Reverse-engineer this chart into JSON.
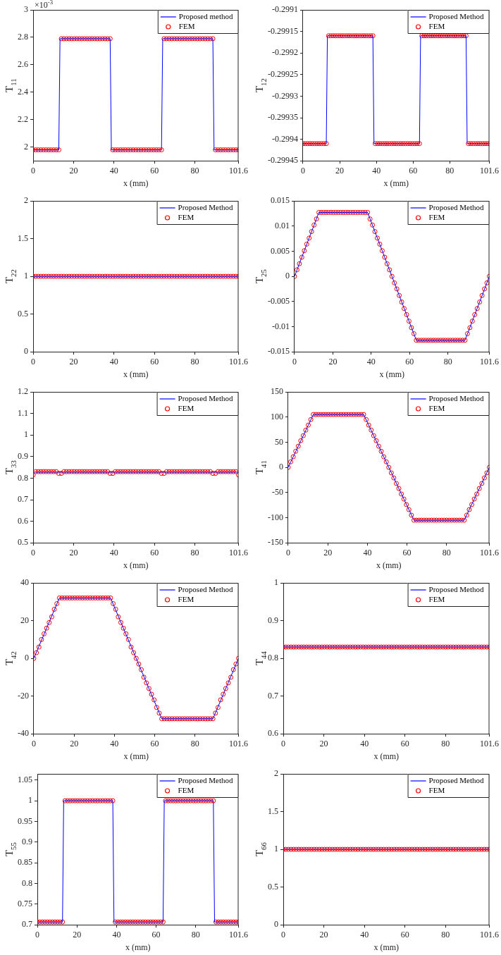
{
  "chart_data": [
    {
      "type": "line",
      "xlabel": "x (mm)",
      "ylabel": "T$_{11}$",
      "annotations": [
        "×10$^{-3}$"
      ],
      "legend": "top right",
      "xlim": [
        0,
        101.6
      ],
      "xticks": [
        0,
        20,
        40,
        60,
        80,
        101.6
      ],
      "ylim": [
        1.9,
        3
      ],
      "yticks": [
        2,
        2.2,
        2.4,
        2.6,
        2.8,
        3
      ],
      "x": [
        0,
        1.27,
        2.54,
        3.81,
        5.08,
        6.35,
        7.62,
        8.89,
        10.16,
        11.43,
        12.7,
        13.97,
        15.24,
        16.51,
        17.78,
        19.05,
        20.32,
        21.59,
        22.86,
        24.13,
        25.4,
        26.67,
        27.94,
        29.21,
        30.48,
        31.75,
        33.02,
        34.29,
        35.56,
        36.83,
        38.1,
        39.37,
        40.64,
        41.91,
        43.18,
        44.45,
        45.72,
        46.99,
        48.26,
        49.53,
        50.8,
        52.07,
        53.34,
        54.61,
        55.88,
        57.15,
        58.42,
        59.69,
        60.96,
        62.23,
        63.5,
        64.77,
        66.04,
        67.31,
        68.58,
        69.85,
        71.12,
        72.39,
        73.66,
        74.93,
        76.2,
        77.47,
        78.74,
        80.01,
        81.28,
        82.55,
        83.82,
        85.09,
        86.36,
        87.63,
        88.9,
        90.17,
        91.44,
        92.71,
        93.98,
        95.25,
        96.52,
        97.79,
        99.06,
        100.33,
        101.6
      ],
      "series": [
        {
          "name": "Proposed method",
          "type": "line",
          "marker": "none",
          "color": "#0000ff",
          "x": [
            0,
            12.7,
            13.3,
            38.1,
            38.7,
            63.5,
            64.1,
            88.9,
            89.5,
            101.6
          ],
          "values": [
            1.98,
            1.98,
            2.79,
            2.79,
            1.98,
            1.98,
            2.79,
            2.79,
            1.98,
            1.98
          ]
        },
        {
          "name": "FEM",
          "type": "scatter",
          "marker": "circle",
          "color": "#ff0000",
          "values": [
            1.98,
            1.98,
            1.98,
            1.98,
            1.98,
            1.98,
            1.98,
            1.98,
            1.98,
            1.98,
            1.98,
            2.79,
            2.79,
            2.79,
            2.79,
            2.79,
            2.79,
            2.79,
            2.79,
            2.79,
            2.79,
            2.79,
            2.79,
            2.79,
            2.79,
            2.79,
            2.79,
            2.79,
            2.79,
            2.79,
            2.79,
            1.98,
            1.98,
            1.98,
            1.98,
            1.98,
            1.98,
            1.98,
            1.98,
            1.98,
            1.98,
            1.98,
            1.98,
            1.98,
            1.98,
            1.98,
            1.98,
            1.98,
            1.98,
            1.98,
            1.98,
            2.79,
            2.79,
            2.79,
            2.79,
            2.79,
            2.79,
            2.79,
            2.79,
            2.79,
            2.79,
            2.79,
            2.79,
            2.79,
            2.79,
            2.79,
            2.79,
            2.79,
            2.79,
            2.79,
            2.79,
            1.98,
            1.98,
            1.98,
            1.98,
            1.98,
            1.98,
            1.98,
            1.98,
            1.98,
            1.98
          ]
        }
      ]
    },
    {
      "type": "line",
      "xlabel": "x (mm)",
      "ylabel": "T$_{12}$",
      "legend": "top right",
      "xlim": [
        0,
        101.6
      ],
      "xticks": [
        0,
        20,
        40,
        60,
        80,
        101.6
      ],
      "ylim": [
        -0.29945,
        -0.2991
      ],
      "yticks": [
        -0.29945,
        -0.2994,
        -0.29935,
        -0.2993,
        -0.29925,
        -0.2992,
        -0.29915,
        -0.2991
      ],
      "x": [
        0,
        1.27,
        2.54,
        3.81,
        5.08,
        6.35,
        7.62,
        8.89,
        10.16,
        11.43,
        12.7,
        13.97,
        15.24,
        16.51,
        17.78,
        19.05,
        20.32,
        21.59,
        22.86,
        24.13,
        25.4,
        26.67,
        27.94,
        29.21,
        30.48,
        31.75,
        33.02,
        34.29,
        35.56,
        36.83,
        38.1,
        39.37,
        40.64,
        41.91,
        43.18,
        44.45,
        45.72,
        46.99,
        48.26,
        49.53,
        50.8,
        52.07,
        53.34,
        54.61,
        55.88,
        57.15,
        58.42,
        59.69,
        60.96,
        62.23,
        63.5,
        64.77,
        66.04,
        67.31,
        68.58,
        69.85,
        71.12,
        72.39,
        73.66,
        74.93,
        76.2,
        77.47,
        78.74,
        80.01,
        81.28,
        82.55,
        83.82,
        85.09,
        86.36,
        87.63,
        88.9,
        90.17,
        91.44,
        92.71,
        93.98,
        95.25,
        96.52,
        97.79,
        99.06,
        100.33,
        101.6
      ],
      "series": [
        {
          "name": "Proposed Method",
          "type": "line",
          "marker": "none",
          "color": "#0000ff",
          "x": [
            0,
            12.7,
            13.3,
            38.1,
            38.7,
            63.5,
            64.1,
            88.9,
            89.5,
            101.6
          ],
          "values": [
            -0.29941,
            -0.29941,
            -0.29916,
            -0.29916,
            -0.29941,
            -0.29941,
            -0.29916,
            -0.29916,
            -0.29941,
            -0.29941
          ]
        },
        {
          "name": "FEM",
          "type": "scatter",
          "marker": "circle",
          "color": "#ff0000",
          "values": [
            -0.29941,
            -0.29941,
            -0.29941,
            -0.29941,
            -0.29941,
            -0.29941,
            -0.29941,
            -0.29941,
            -0.29941,
            -0.29941,
            -0.29941,
            -0.29916,
            -0.29916,
            -0.29916,
            -0.29916,
            -0.29916,
            -0.29916,
            -0.29916,
            -0.29916,
            -0.29916,
            -0.29916,
            -0.29916,
            -0.29916,
            -0.29916,
            -0.29916,
            -0.29916,
            -0.29916,
            -0.29916,
            -0.29916,
            -0.29916,
            -0.29916,
            -0.29941,
            -0.29941,
            -0.29941,
            -0.29941,
            -0.29941,
            -0.29941,
            -0.29941,
            -0.29941,
            -0.29941,
            -0.29941,
            -0.29941,
            -0.29941,
            -0.29941,
            -0.29941,
            -0.29941,
            -0.29941,
            -0.29941,
            -0.29941,
            -0.29941,
            -0.29941,
            -0.29916,
            -0.29916,
            -0.29916,
            -0.29916,
            -0.29916,
            -0.29916,
            -0.29916,
            -0.29916,
            -0.29916,
            -0.29916,
            -0.29916,
            -0.29916,
            -0.29916,
            -0.29916,
            -0.29916,
            -0.29916,
            -0.29916,
            -0.29916,
            -0.29916,
            -0.29916,
            -0.29941,
            -0.29941,
            -0.29941,
            -0.29941,
            -0.29941,
            -0.29941,
            -0.29941,
            -0.29941,
            -0.29941,
            -0.29941
          ]
        }
      ]
    },
    {
      "type": "line",
      "xlabel": "x (mm)",
      "ylabel": "T$_{22}$",
      "legend": "top right",
      "xlim": [
        0,
        101.6
      ],
      "xticks": [
        0,
        20,
        40,
        60,
        80,
        101.6
      ],
      "ylim": [
        0,
        2
      ],
      "yticks": [
        0,
        0.5,
        1,
        1.5,
        2
      ],
      "x": [
        0,
        1.27,
        2.54,
        3.81,
        5.08,
        6.35,
        7.62,
        8.89,
        10.16,
        11.43,
        12.7,
        13.97,
        15.24,
        16.51,
        17.78,
        19.05,
        20.32,
        21.59,
        22.86,
        24.13,
        25.4,
        26.67,
        27.94,
        29.21,
        30.48,
        31.75,
        33.02,
        34.29,
        35.56,
        36.83,
        38.1,
        39.37,
        40.64,
        41.91,
        43.18,
        44.45,
        45.72,
        46.99,
        48.26,
        49.53,
        50.8,
        52.07,
        53.34,
        54.61,
        55.88,
        57.15,
        58.42,
        59.69,
        60.96,
        62.23,
        63.5,
        64.77,
        66.04,
        67.31,
        68.58,
        69.85,
        71.12,
        72.39,
        73.66,
        74.93,
        76.2,
        77.47,
        78.74,
        80.01,
        81.28,
        82.55,
        83.82,
        85.09,
        86.36,
        87.63,
        88.9,
        90.17,
        91.44,
        92.71,
        93.98,
        95.25,
        96.52,
        97.79,
        99.06,
        100.33,
        101.6
      ],
      "series": [
        {
          "name": "Proposed Method",
          "type": "line",
          "marker": "none",
          "color": "#0000ff",
          "x": [
            0,
            101.6
          ],
          "values": [
            1,
            1
          ]
        },
        {
          "name": "FEM",
          "type": "scatter",
          "marker": "circle",
          "color": "#ff0000",
          "values": [
            1,
            1,
            1,
            1,
            1,
            1,
            1,
            1,
            1,
            1,
            1,
            1,
            1,
            1,
            1,
            1,
            1,
            1,
            1,
            1,
            1,
            1,
            1,
            1,
            1,
            1,
            1,
            1,
            1,
            1,
            1,
            1,
            1,
            1,
            1,
            1,
            1,
            1,
            1,
            1,
            1,
            1,
            1,
            1,
            1,
            1,
            1,
            1,
            1,
            1,
            1,
            1,
            1,
            1,
            1,
            1,
            1,
            1,
            1,
            1,
            1,
            1,
            1,
            1,
            1,
            1,
            1,
            1,
            1,
            1,
            1,
            1,
            1,
            1,
            1,
            1,
            1,
            1,
            1,
            1,
            1
          ]
        }
      ]
    },
    {
      "type": "line",
      "xlabel": "x (mm)",
      "ylabel": "T$_{25}$",
      "legend": "top right",
      "xlim": [
        0,
        101.6
      ],
      "xticks": [
        0,
        20,
        40,
        60,
        80,
        101.6
      ],
      "ylim": [
        -0.015,
        0.015
      ],
      "yticks": [
        -0.015,
        -0.01,
        -0.005,
        0,
        0.005,
        0.01,
        0.015
      ],
      "x": [
        0,
        1.27,
        2.54,
        3.81,
        5.08,
        6.35,
        7.62,
        8.89,
        10.16,
        11.43,
        12.7,
        13.97,
        15.24,
        16.51,
        17.78,
        19.05,
        20.32,
        21.59,
        22.86,
        24.13,
        25.4,
        26.67,
        27.94,
        29.21,
        30.48,
        31.75,
        33.02,
        34.29,
        35.56,
        36.83,
        38.1,
        39.37,
        40.64,
        41.91,
        43.18,
        44.45,
        45.72,
        46.99,
        48.26,
        49.53,
        50.8,
        52.07,
        53.34,
        54.61,
        55.88,
        57.15,
        58.42,
        59.69,
        60.96,
        62.23,
        63.5,
        64.77,
        66.04,
        67.31,
        68.58,
        69.85,
        71.12,
        72.39,
        73.66,
        74.93,
        76.2,
        77.47,
        78.74,
        80.01,
        81.28,
        82.55,
        83.82,
        85.09,
        86.36,
        87.63,
        88.9,
        90.17,
        91.44,
        92.71,
        93.98,
        95.25,
        96.52,
        97.79,
        99.06,
        100.33,
        101.6
      ],
      "series": [
        {
          "name": "Proposed Method",
          "type": "line",
          "marker": "none",
          "color": "#0000ff",
          "x": [
            0,
            12.7,
            38.1,
            63.5,
            88.9,
            101.6
          ],
          "values": [
            0,
            0.0127,
            0.0127,
            -0.0127,
            -0.0127,
            0
          ]
        },
        {
          "name": "FEM",
          "type": "scatter",
          "marker": "circle",
          "color": "#ff0000",
          "values": [
            0,
            0.0013,
            0.0025,
            0.0038,
            0.0051,
            0.0064,
            0.0076,
            0.0089,
            0.0102,
            0.0114,
            0.0127,
            0.0127,
            0.0127,
            0.0127,
            0.0127,
            0.0127,
            0.0127,
            0.0127,
            0.0127,
            0.0127,
            0.0127,
            0.0127,
            0.0127,
            0.0127,
            0.0127,
            0.0127,
            0.0127,
            0.0127,
            0.0127,
            0.0127,
            0.0127,
            0.0114,
            0.0102,
            0.0089,
            0.0076,
            0.0064,
            0.0051,
            0.0038,
            0.0025,
            0.0013,
            0,
            -0.0013,
            -0.0025,
            -0.0038,
            -0.0051,
            -0.0064,
            -0.0076,
            -0.0089,
            -0.0102,
            -0.0114,
            -0.0127,
            -0.0127,
            -0.0127,
            -0.0127,
            -0.0127,
            -0.0127,
            -0.0127,
            -0.0127,
            -0.0127,
            -0.0127,
            -0.0127,
            -0.0127,
            -0.0127,
            -0.0127,
            -0.0127,
            -0.0127,
            -0.0127,
            -0.0127,
            -0.0127,
            -0.0127,
            -0.0127,
            -0.0114,
            -0.0102,
            -0.0089,
            -0.0076,
            -0.0064,
            -0.0051,
            -0.0038,
            -0.0025,
            -0.0013,
            0
          ]
        }
      ]
    },
    {
      "type": "line",
      "xlabel": "x (mm)",
      "ylabel": "T$_{33}$",
      "legend": "top right",
      "xlim": [
        0,
        101.6
      ],
      "xticks": [
        0,
        20,
        40,
        60,
        80,
        101.6
      ],
      "ylim": [
        0.5,
        1.2
      ],
      "yticks": [
        0.5,
        0.6,
        0.7,
        0.8,
        0.9,
        1,
        1.1,
        1.2
      ],
      "x": [
        0,
        1.27,
        2.54,
        3.81,
        5.08,
        6.35,
        7.62,
        8.89,
        10.16,
        11.43,
        12.7,
        13.97,
        15.24,
        16.51,
        17.78,
        19.05,
        20.32,
        21.59,
        22.86,
        24.13,
        25.4,
        26.67,
        27.94,
        29.21,
        30.48,
        31.75,
        33.02,
        34.29,
        35.56,
        36.83,
        38.1,
        39.37,
        40.64,
        41.91,
        43.18,
        44.45,
        45.72,
        46.99,
        48.26,
        49.53,
        50.8,
        52.07,
        53.34,
        54.61,
        55.88,
        57.15,
        58.42,
        59.69,
        60.96,
        62.23,
        63.5,
        64.77,
        66.04,
        67.31,
        68.58,
        69.85,
        71.12,
        72.39,
        73.66,
        74.93,
        76.2,
        77.47,
        78.74,
        80.01,
        81.28,
        82.55,
        83.82,
        85.09,
        86.36,
        87.63,
        88.9,
        90.17,
        91.44,
        92.71,
        93.98,
        95.25,
        96.52,
        97.79,
        99.06,
        100.33,
        101.6
      ],
      "series": [
        {
          "name": "Proposed Method",
          "type": "line",
          "marker": "none",
          "color": "#0000ff",
          "x": [
            0,
            101.6
          ],
          "values": [
            0.828,
            0.828
          ]
        },
        {
          "name": "FEM",
          "type": "scatter",
          "marker": "circle",
          "color": "#ff0000",
          "values": [
            0.815,
            0.83,
            0.83,
            0.83,
            0.83,
            0.83,
            0.83,
            0.83,
            0.83,
            0.83,
            0.822,
            0.822,
            0.83,
            0.83,
            0.83,
            0.83,
            0.83,
            0.83,
            0.83,
            0.83,
            0.83,
            0.83,
            0.83,
            0.83,
            0.83,
            0.83,
            0.83,
            0.83,
            0.83,
            0.83,
            0.822,
            0.822,
            0.83,
            0.83,
            0.83,
            0.83,
            0.83,
            0.83,
            0.83,
            0.83,
            0.83,
            0.83,
            0.83,
            0.83,
            0.83,
            0.83,
            0.83,
            0.83,
            0.83,
            0.83,
            0.822,
            0.822,
            0.83,
            0.83,
            0.83,
            0.83,
            0.83,
            0.83,
            0.83,
            0.83,
            0.83,
            0.83,
            0.83,
            0.83,
            0.83,
            0.83,
            0.83,
            0.83,
            0.83,
            0.83,
            0.822,
            0.822,
            0.83,
            0.83,
            0.83,
            0.83,
            0.83,
            0.83,
            0.83,
            0.83,
            0.815
          ]
        }
      ]
    },
    {
      "type": "line",
      "xlabel": "x (mm)",
      "ylabel": "T$_{41}$",
      "legend": "top right",
      "xlim": [
        0,
        101.6
      ],
      "xticks": [
        0,
        20,
        40,
        60,
        80,
        101.6
      ],
      "ylim": [
        -150,
        150
      ],
      "yticks": [
        -150,
        -100,
        -50,
        0,
        50,
        100,
        150
      ],
      "x": [
        0,
        1.27,
        2.54,
        3.81,
        5.08,
        6.35,
        7.62,
        8.89,
        10.16,
        11.43,
        12.7,
        13.97,
        15.24,
        16.51,
        17.78,
        19.05,
        20.32,
        21.59,
        22.86,
        24.13,
        25.4,
        26.67,
        27.94,
        29.21,
        30.48,
        31.75,
        33.02,
        34.29,
        35.56,
        36.83,
        38.1,
        39.37,
        40.64,
        41.91,
        43.18,
        44.45,
        45.72,
        46.99,
        48.26,
        49.53,
        50.8,
        52.07,
        53.34,
        54.61,
        55.88,
        57.15,
        58.42,
        59.69,
        60.96,
        62.23,
        63.5,
        64.77,
        66.04,
        67.31,
        68.58,
        69.85,
        71.12,
        72.39,
        73.66,
        74.93,
        76.2,
        77.47,
        78.74,
        80.01,
        81.28,
        82.55,
        83.82,
        85.09,
        86.36,
        87.63,
        88.9,
        90.17,
        91.44,
        92.71,
        93.98,
        95.25,
        96.52,
        97.79,
        99.06,
        100.33,
        101.6
      ],
      "series": [
        {
          "name": "Proposed Method",
          "type": "line",
          "marker": "none",
          "color": "#0000ff",
          "x": [
            0,
            12.7,
            38.1,
            63.5,
            88.9,
            101.6
          ],
          "values": [
            0,
            105,
            105,
            -105,
            -105,
            0
          ]
        },
        {
          "name": "FEM",
          "type": "scatter",
          "marker": "circle",
          "color": "#ff0000",
          "values": [
            0,
            11,
            21,
            32,
            42,
            53,
            63,
            74,
            84,
            95,
            105,
            105,
            105,
            105,
            105,
            105,
            105,
            105,
            105,
            105,
            105,
            105,
            105,
            105,
            105,
            105,
            105,
            105,
            105,
            105,
            105,
            95,
            84,
            74,
            63,
            53,
            42,
            32,
            21,
            11,
            0,
            -11,
            -21,
            -32,
            -42,
            -53,
            -63,
            -74,
            -84,
            -95,
            -105,
            -105,
            -105,
            -105,
            -105,
            -105,
            -105,
            -105,
            -105,
            -105,
            -105,
            -105,
            -105,
            -105,
            -105,
            -105,
            -105,
            -105,
            -105,
            -105,
            -105,
            -95,
            -84,
            -74,
            -63,
            -53,
            -42,
            -32,
            -21,
            -11,
            0
          ]
        }
      ]
    },
    {
      "type": "line",
      "xlabel": "x (mm)",
      "ylabel": "T$_{42}$",
      "legend": "top right",
      "xlim": [
        0,
        101.6
      ],
      "xticks": [
        0,
        20,
        40,
        60,
        80,
        101.6
      ],
      "ylim": [
        -40,
        40
      ],
      "yticks": [
        -40,
        -20,
        0,
        20,
        40
      ],
      "x": [
        0,
        1.27,
        2.54,
        3.81,
        5.08,
        6.35,
        7.62,
        8.89,
        10.16,
        11.43,
        12.7,
        13.97,
        15.24,
        16.51,
        17.78,
        19.05,
        20.32,
        21.59,
        22.86,
        24.13,
        25.4,
        26.67,
        27.94,
        29.21,
        30.48,
        31.75,
        33.02,
        34.29,
        35.56,
        36.83,
        38.1,
        39.37,
        40.64,
        41.91,
        43.18,
        44.45,
        45.72,
        46.99,
        48.26,
        49.53,
        50.8,
        52.07,
        53.34,
        54.61,
        55.88,
        57.15,
        58.42,
        59.69,
        60.96,
        62.23,
        63.5,
        64.77,
        66.04,
        67.31,
        68.58,
        69.85,
        71.12,
        72.39,
        73.66,
        74.93,
        76.2,
        77.47,
        78.74,
        80.01,
        81.28,
        82.55,
        83.82,
        85.09,
        86.36,
        87.63,
        88.9,
        90.17,
        91.44,
        92.71,
        93.98,
        95.25,
        96.52,
        97.79,
        99.06,
        100.33,
        101.6
      ],
      "series": [
        {
          "name": "Proposed Method",
          "type": "line",
          "marker": "none",
          "color": "#0000ff",
          "x": [
            0,
            12.7,
            38.1,
            63.5,
            88.9,
            101.6
          ],
          "values": [
            0,
            32,
            32,
            -32,
            -32,
            0
          ]
        },
        {
          "name": "FEM",
          "type": "scatter",
          "marker": "circle",
          "color": "#ff0000",
          "values": [
            0,
            3,
            6,
            10,
            13,
            16,
            19,
            22,
            26,
            29,
            32,
            32,
            32,
            32,
            32,
            32,
            32,
            32,
            32,
            32,
            32,
            32,
            32,
            32,
            32,
            32,
            32,
            32,
            32,
            32,
            32,
            29,
            26,
            22,
            19,
            16,
            13,
            10,
            6,
            3,
            0,
            -3,
            -6,
            -10,
            -13,
            -16,
            -19,
            -22,
            -26,
            -29,
            -32,
            -32,
            -32,
            -32,
            -32,
            -32,
            -32,
            -32,
            -32,
            -32,
            -32,
            -32,
            -32,
            -32,
            -32,
            -32,
            -32,
            -32,
            -32,
            -32,
            -32,
            -29,
            -26,
            -22,
            -19,
            -16,
            -13,
            -10,
            -6,
            -3,
            0
          ]
        }
      ]
    },
    {
      "type": "line",
      "xlabel": "x (mm)",
      "ylabel": "T$_{44}$",
      "legend": "top right",
      "xlim": [
        0,
        101.6
      ],
      "xticks": [
        0,
        20,
        40,
        60,
        80,
        101.6
      ],
      "ylim": [
        0.6,
        1
      ],
      "yticks": [
        0.6,
        0.7,
        0.8,
        0.9,
        1
      ],
      "x": [
        0,
        1.27,
        2.54,
        3.81,
        5.08,
        6.35,
        7.62,
        8.89,
        10.16,
        11.43,
        12.7,
        13.97,
        15.24,
        16.51,
        17.78,
        19.05,
        20.32,
        21.59,
        22.86,
        24.13,
        25.4,
        26.67,
        27.94,
        29.21,
        30.48,
        31.75,
        33.02,
        34.29,
        35.56,
        36.83,
        38.1,
        39.37,
        40.64,
        41.91,
        43.18,
        44.45,
        45.72,
        46.99,
        48.26,
        49.53,
        50.8,
        52.07,
        53.34,
        54.61,
        55.88,
        57.15,
        58.42,
        59.69,
        60.96,
        62.23,
        63.5,
        64.77,
        66.04,
        67.31,
        68.58,
        69.85,
        71.12,
        72.39,
        73.66,
        74.93,
        76.2,
        77.47,
        78.74,
        80.01,
        81.28,
        82.55,
        83.82,
        85.09,
        86.36,
        87.63,
        88.9,
        90.17,
        91.44,
        92.71,
        93.98,
        95.25,
        96.52,
        97.79,
        99.06,
        100.33,
        101.6
      ],
      "series": [
        {
          "name": "Proposed Method",
          "type": "line",
          "marker": "none",
          "color": "#0000ff",
          "x": [
            0,
            101.6
          ],
          "values": [
            0.83,
            0.83
          ]
        },
        {
          "name": "FEM",
          "type": "scatter",
          "marker": "circle",
          "color": "#ff0000",
          "values": [
            0.83,
            0.83,
            0.83,
            0.83,
            0.83,
            0.83,
            0.83,
            0.83,
            0.83,
            0.83,
            0.83,
            0.83,
            0.83,
            0.83,
            0.83,
            0.83,
            0.83,
            0.83,
            0.83,
            0.83,
            0.83,
            0.83,
            0.83,
            0.83,
            0.83,
            0.83,
            0.83,
            0.83,
            0.83,
            0.83,
            0.83,
            0.83,
            0.83,
            0.83,
            0.83,
            0.83,
            0.83,
            0.83,
            0.83,
            0.83,
            0.83,
            0.83,
            0.83,
            0.83,
            0.83,
            0.83,
            0.83,
            0.83,
            0.83,
            0.83,
            0.83,
            0.83,
            0.83,
            0.83,
            0.83,
            0.83,
            0.83,
            0.83,
            0.83,
            0.83,
            0.83,
            0.83,
            0.83,
            0.83,
            0.83,
            0.83,
            0.83,
            0.83,
            0.83,
            0.83,
            0.83,
            0.83,
            0.83,
            0.83,
            0.83,
            0.83,
            0.83,
            0.83,
            0.83,
            0.83,
            0.83
          ]
        }
      ]
    },
    {
      "type": "line",
      "xlabel": "x (mm)",
      "ylabel": "T$_{55}$",
      "legend": "top right",
      "xlim": [
        0,
        101.6
      ],
      "xticks": [
        0,
        20,
        40,
        60,
        80,
        101.6
      ],
      "ylim": [
        0.7,
        1.065
      ],
      "yticks": [
        0.7,
        0.75,
        0.8,
        0.85,
        0.9,
        0.95,
        1,
        1.05
      ],
      "x": [
        0,
        1.27,
        2.54,
        3.81,
        5.08,
        6.35,
        7.62,
        8.89,
        10.16,
        11.43,
        12.7,
        13.97,
        15.24,
        16.51,
        17.78,
        19.05,
        20.32,
        21.59,
        22.86,
        24.13,
        25.4,
        26.67,
        27.94,
        29.21,
        30.48,
        31.75,
        33.02,
        34.29,
        35.56,
        36.83,
        38.1,
        39.37,
        40.64,
        41.91,
        43.18,
        44.45,
        45.72,
        46.99,
        48.26,
        49.53,
        50.8,
        52.07,
        53.34,
        54.61,
        55.88,
        57.15,
        58.42,
        59.69,
        60.96,
        62.23,
        63.5,
        64.77,
        66.04,
        67.31,
        68.58,
        69.85,
        71.12,
        72.39,
        73.66,
        74.93,
        76.2,
        77.47,
        78.74,
        80.01,
        81.28,
        82.55,
        83.82,
        85.09,
        86.36,
        87.63,
        88.9,
        90.17,
        91.44,
        92.71,
        93.98,
        95.25,
        96.52,
        97.79,
        99.06,
        100.33,
        101.6
      ],
      "series": [
        {
          "name": "Proposed Method",
          "type": "line",
          "marker": "none",
          "color": "#0000ff",
          "x": [
            0,
            12.7,
            13.3,
            38.1,
            38.7,
            63.5,
            64.1,
            88.9,
            89.5,
            101.6
          ],
          "values": [
            0.707,
            0.707,
            1,
            1,
            0.707,
            0.707,
            1,
            1,
            0.707,
            0.707
          ]
        },
        {
          "name": "FEM",
          "type": "scatter",
          "marker": "circle",
          "color": "#ff0000",
          "values": [
            0.707,
            0.707,
            0.707,
            0.707,
            0.707,
            0.707,
            0.707,
            0.707,
            0.707,
            0.707,
            0.707,
            1,
            1,
            1,
            1,
            1,
            1,
            1,
            1,
            1,
            1,
            1,
            1,
            1,
            1,
            1,
            1,
            1,
            1,
            1,
            1,
            0.707,
            0.707,
            0.707,
            0.707,
            0.707,
            0.707,
            0.707,
            0.707,
            0.707,
            0.707,
            0.707,
            0.707,
            0.707,
            0.707,
            0.707,
            0.707,
            0.707,
            0.707,
            0.707,
            0.707,
            1,
            1,
            1,
            1,
            1,
            1,
            1,
            1,
            1,
            1,
            1,
            1,
            1,
            1,
            1,
            1,
            1,
            1,
            1,
            1,
            0.707,
            0.707,
            0.707,
            0.707,
            0.707,
            0.707,
            0.707,
            0.707,
            0.707,
            0.707
          ]
        }
      ]
    },
    {
      "type": "line",
      "xlabel": "x (mm)",
      "ylabel": "T$_{66}$",
      "legend": "top right",
      "xlim": [
        0,
        101.6
      ],
      "xticks": [
        0,
        20,
        40,
        60,
        80,
        101.6
      ],
      "ylim": [
        0,
        2
      ],
      "yticks": [
        0,
        0.5,
        1,
        1.5,
        2
      ],
      "x": [
        0,
        1.27,
        2.54,
        3.81,
        5.08,
        6.35,
        7.62,
        8.89,
        10.16,
        11.43,
        12.7,
        13.97,
        15.24,
        16.51,
        17.78,
        19.05,
        20.32,
        21.59,
        22.86,
        24.13,
        25.4,
        26.67,
        27.94,
        29.21,
        30.48,
        31.75,
        33.02,
        34.29,
        35.56,
        36.83,
        38.1,
        39.37,
        40.64,
        41.91,
        43.18,
        44.45,
        45.72,
        46.99,
        48.26,
        49.53,
        50.8,
        52.07,
        53.34,
        54.61,
        55.88,
        57.15,
        58.42,
        59.69,
        60.96,
        62.23,
        63.5,
        64.77,
        66.04,
        67.31,
        68.58,
        69.85,
        71.12,
        72.39,
        73.66,
        74.93,
        76.2,
        77.47,
        78.74,
        80.01,
        81.28,
        82.55,
        83.82,
        85.09,
        86.36,
        87.63,
        88.9,
        90.17,
        91.44,
        92.71,
        93.98,
        95.25,
        96.52,
        97.79,
        99.06,
        100.33,
        101.6
      ],
      "series": [
        {
          "name": "Proposed Method",
          "type": "line",
          "marker": "none",
          "color": "#0000ff",
          "x": [
            0,
            101.6
          ],
          "values": [
            1,
            1
          ]
        },
        {
          "name": "FEM",
          "type": "scatter",
          "marker": "circle",
          "color": "#ff0000",
          "values": [
            1,
            1,
            1,
            1,
            1,
            1,
            1,
            1,
            1,
            1,
            1,
            1,
            1,
            1,
            1,
            1,
            1,
            1,
            1,
            1,
            1,
            1,
            1,
            1,
            1,
            1,
            1,
            1,
            1,
            1,
            1,
            1,
            1,
            1,
            1,
            1,
            1,
            1,
            1,
            1,
            1,
            1,
            1,
            1,
            1,
            1,
            1,
            1,
            1,
            1,
            1,
            1,
            1,
            1,
            1,
            1,
            1,
            1,
            1,
            1,
            1,
            1,
            1,
            1,
            1,
            1,
            1,
            1,
            1,
            1,
            1,
            1,
            1,
            1,
            1,
            1,
            1,
            1,
            1,
            1,
            1
          ]
        }
      ]
    }
  ]
}
